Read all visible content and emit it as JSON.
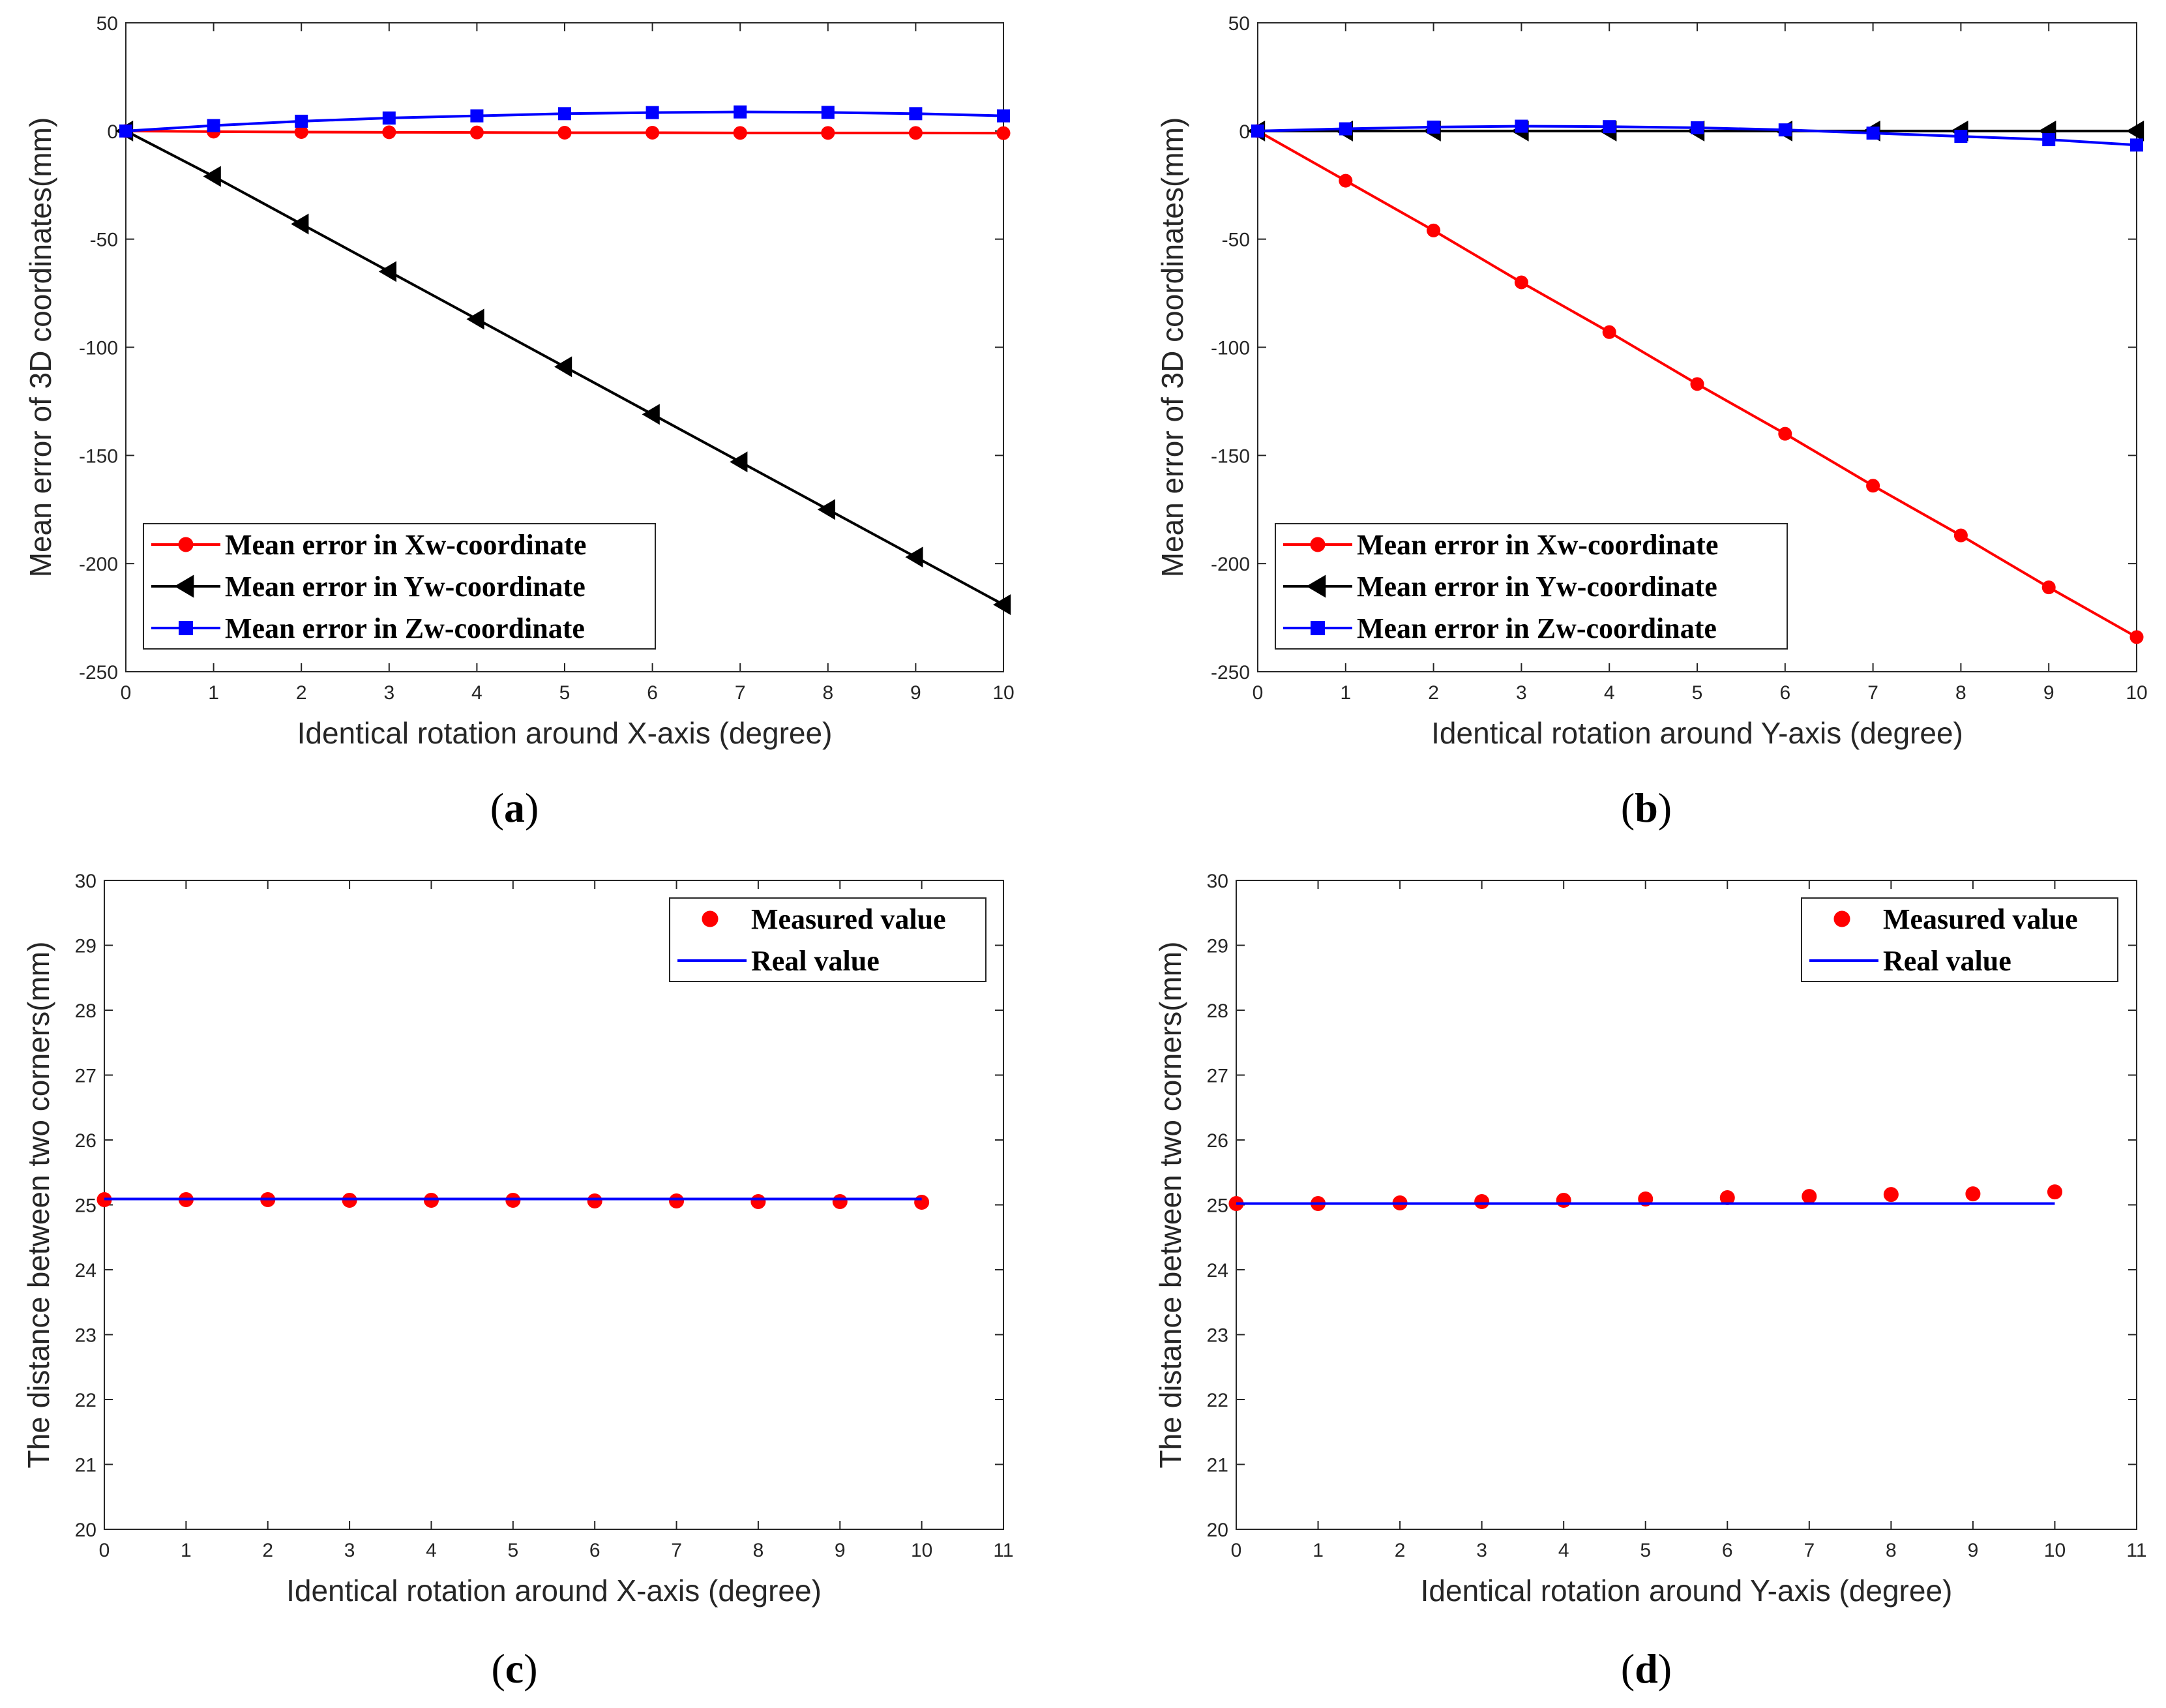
{
  "chart_data": [
    {
      "type": "line",
      "panel": "a",
      "panel_label": "a",
      "title": "",
      "xlabel": "Identical rotation around X-axis (degree)",
      "ylabel": "Mean error of 3D coordinates(mm)",
      "xlim": [
        0,
        10
      ],
      "ylim": [
        -250,
        50
      ],
      "xticks": [
        0,
        1,
        2,
        3,
        4,
        5,
        6,
        7,
        8,
        9,
        10
      ],
      "yticks": [
        50,
        0,
        -50,
        -100,
        -150,
        -200,
        -250
      ],
      "legend_position": "bottom-left",
      "x": [
        0,
        1,
        2,
        3,
        4,
        5,
        6,
        7,
        8,
        9,
        10
      ],
      "series": [
        {
          "name": "Mean error in Xw-coordinate",
          "color": "#ff0000",
          "marker": "circle",
          "values": [
            0,
            -0.3,
            -0.5,
            -0.6,
            -0.7,
            -0.8,
            -0.8,
            -0.9,
            -0.9,
            -0.9,
            -1.0
          ]
        },
        {
          "name": "Mean error in Yw-coordinate",
          "color": "#000000",
          "marker": "triangle-left",
          "values": [
            0,
            -21,
            -43,
            -65,
            -87,
            -109,
            -131,
            -153,
            -175,
            -197,
            -219
          ]
        },
        {
          "name": "Mean error in Zw-coordinate",
          "color": "#0000ff",
          "marker": "square",
          "values": [
            0,
            2.5,
            4.5,
            6,
            7,
            8,
            8.5,
            8.8,
            8.6,
            8,
            7
          ]
        }
      ]
    },
    {
      "type": "line",
      "panel": "b",
      "panel_label": "b",
      "title": "",
      "xlabel": "Identical rotation around Y-axis (degree)",
      "ylabel": "Mean error of 3D coordinates(mm)",
      "xlim": [
        0,
        10
      ],
      "ylim": [
        -250,
        50
      ],
      "xticks": [
        0,
        1,
        2,
        3,
        4,
        5,
        6,
        7,
        8,
        9,
        10
      ],
      "yticks": [
        50,
        0,
        -50,
        -100,
        -150,
        -200,
        -250
      ],
      "legend_position": "bottom-left",
      "x": [
        0,
        1,
        2,
        3,
        4,
        5,
        6,
        7,
        8,
        9,
        10
      ],
      "series": [
        {
          "name": "Mean error in Xw-coordinate",
          "color": "#ff0000",
          "marker": "circle",
          "values": [
            0,
            -23,
            -46,
            -70,
            -93,
            -117,
            -140,
            -164,
            -187,
            -211,
            -234
          ]
        },
        {
          "name": "Mean error in Yw-coordinate",
          "color": "#000000",
          "marker": "triangle-left",
          "values": [
            0,
            0,
            0,
            0,
            0,
            0,
            0,
            0,
            0,
            0,
            0
          ]
        },
        {
          "name": "Mean error in Zw-coordinate",
          "color": "#0000ff",
          "marker": "square",
          "values": [
            0,
            1,
            1.8,
            2.2,
            2,
            1.5,
            0.5,
            -1,
            -2.5,
            -4,
            -6.5
          ]
        }
      ]
    },
    {
      "type": "scatter",
      "panel": "c",
      "panel_label": "c",
      "title": "",
      "xlabel": "Identical rotation around X-axis (degree)",
      "ylabel": "The distance between two corners(mm)",
      "xlim": [
        0,
        11
      ],
      "ylim": [
        20,
        30
      ],
      "xticks": [
        0,
        1,
        2,
        3,
        4,
        5,
        6,
        7,
        8,
        9,
        10,
        11
      ],
      "yticks": [
        30,
        29,
        28,
        27,
        26,
        25,
        24,
        23,
        22,
        21,
        20
      ],
      "legend_position": "top-right",
      "x": [
        0,
        1,
        2,
        3,
        4,
        5,
        6,
        7,
        8,
        9,
        10
      ],
      "series": [
        {
          "name": "Measured value",
          "color": "#ff0000",
          "marker": "circle",
          "style": "markers",
          "values": [
            25.08,
            25.08,
            25.08,
            25.07,
            25.07,
            25.07,
            25.06,
            25.06,
            25.05,
            25.05,
            25.04
          ]
        },
        {
          "name": "Real value",
          "color": "#0000ff",
          "marker": "none",
          "style": "line",
          "values": [
            25.09,
            25.09,
            25.09,
            25.09,
            25.09,
            25.09,
            25.09,
            25.09,
            25.09,
            25.09,
            25.09
          ]
        }
      ]
    },
    {
      "type": "scatter",
      "panel": "d",
      "panel_label": "d",
      "title": "",
      "xlabel": "Identical rotation around Y-axis (degree)",
      "ylabel": "The distance between two corners(mm)",
      "xlim": [
        0,
        11
      ],
      "ylim": [
        20,
        30
      ],
      "xticks": [
        0,
        1,
        2,
        3,
        4,
        5,
        6,
        7,
        8,
        9,
        10,
        11
      ],
      "yticks": [
        30,
        29,
        28,
        27,
        26,
        25,
        24,
        23,
        22,
        21,
        20
      ],
      "legend_position": "top-right",
      "x": [
        0,
        1,
        2,
        3,
        4,
        5,
        6,
        7,
        8,
        9,
        10
      ],
      "series": [
        {
          "name": "Measured value",
          "color": "#ff0000",
          "marker": "circle",
          "style": "markers",
          "values": [
            25.02,
            25.02,
            25.03,
            25.05,
            25.07,
            25.09,
            25.11,
            25.13,
            25.16,
            25.17,
            25.2
          ]
        },
        {
          "name": "Real value",
          "color": "#0000ff",
          "marker": "none",
          "style": "line",
          "values": [
            25.02,
            25.02,
            25.02,
            25.02,
            25.02,
            25.02,
            25.02,
            25.02,
            25.02,
            25.02,
            25.02
          ]
        }
      ]
    }
  ]
}
